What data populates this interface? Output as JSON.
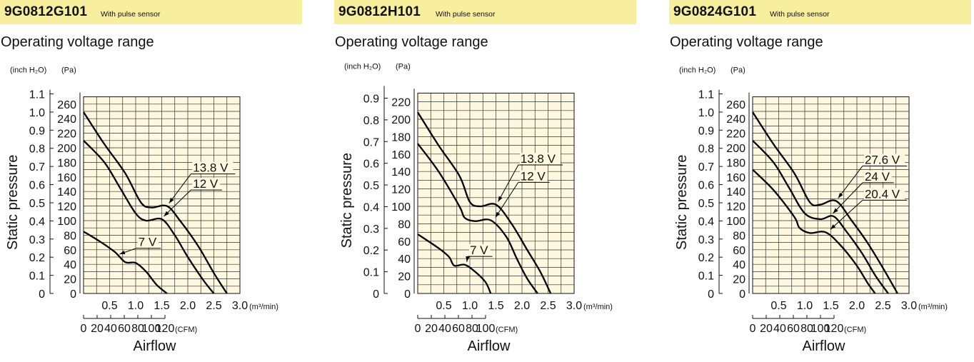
{
  "chart_data": [
    {
      "type": "line",
      "title": "9G0812G101",
      "subtitle": "With pulse sensor",
      "section_label": "Operating voltage range",
      "xlabel": "Airflow",
      "ylabel": "Static pressure",
      "x_unit_top": "(m³/min)",
      "x_unit_bottom": "(CFM)",
      "y_unit_left": "(inch H₂O)",
      "y_unit_right": "(Pa)",
      "x_ticks_m3": [
        "0.5",
        "1.0",
        "1.5",
        "2.0",
        "2.5",
        "3.0"
      ],
      "x_ticks_cfm": [
        "0",
        "20",
        "40",
        "60",
        "80",
        "100",
        "120"
      ],
      "y_ticks_pa": [
        "0",
        "20",
        "40",
        "60",
        "80",
        "100",
        "120",
        "140",
        "160",
        "180",
        "200",
        "220",
        "240",
        "260"
      ],
      "y_ticks_inch": [
        "0",
        "0.1",
        "0.2",
        "0.3",
        "0.4",
        "0.5",
        "0.6",
        "0.7",
        "0.8",
        "0.9",
        "1.0",
        "1.1"
      ],
      "xlim_m3": [
        0,
        3.0
      ],
      "ylim_pa": [
        0,
        270
      ],
      "grid": true,
      "series": [
        {
          "name": "13.8 V",
          "points": [
            [
              0,
              249
            ],
            [
              0.4,
              205
            ],
            [
              0.8,
              165
            ],
            [
              1.1,
              125
            ],
            [
              1.3,
              118
            ],
            [
              1.6,
              120
            ],
            [
              1.85,
              100
            ],
            [
              2.2,
              65
            ],
            [
              2.5,
              28
            ],
            [
              2.75,
              0
            ]
          ]
        },
        {
          "name": "12 V",
          "points": [
            [
              0,
              210
            ],
            [
              0.4,
              180
            ],
            [
              0.7,
              145
            ],
            [
              1.0,
              110
            ],
            [
              1.2,
              100
            ],
            [
              1.5,
              102
            ],
            [
              1.75,
              80
            ],
            [
              2.0,
              50
            ],
            [
              2.3,
              18
            ],
            [
              2.5,
              0
            ]
          ]
        },
        {
          "name": "7 V",
          "points": [
            [
              0,
              85
            ],
            [
              0.3,
              72
            ],
            [
              0.6,
              57
            ],
            [
              0.8,
              43
            ],
            [
              1.0,
              42
            ],
            [
              1.2,
              30
            ],
            [
              1.4,
              12
            ],
            [
              1.6,
              0
            ]
          ]
        }
      ],
      "labels": [
        {
          "text": "13.8 V",
          "at": [
            1.6,
            120
          ],
          "tx": 2.1,
          "ty": 167
        },
        {
          "text": "12 V",
          "at": [
            1.5,
            102
          ],
          "tx": 2.1,
          "ty": 145
        },
        {
          "text": "7 V",
          "at": [
            0.65,
            50
          ],
          "tx": 1.05,
          "ty": 65
        }
      ]
    },
    {
      "type": "line",
      "title": "9G0812H101",
      "subtitle": "With pulse sensor",
      "section_label": "Operating voltage range",
      "xlabel": "Airflow",
      "ylabel": "Static pressure",
      "x_unit_top": "(m³/min)",
      "x_unit_bottom": "(CFM)",
      "y_unit_left": "(inch H₂O)",
      "y_unit_right": "(Pa)",
      "x_ticks_m3": [
        "0.5",
        "1.0",
        "1.5",
        "2.0",
        "2.5",
        "3.0"
      ],
      "x_ticks_cfm": [
        "0",
        "20",
        "40",
        "60",
        "80",
        "100"
      ],
      "y_ticks_pa": [
        "0",
        "20",
        "40",
        "60",
        "80",
        "100",
        "120",
        "140",
        "160",
        "180",
        "200",
        "220"
      ],
      "y_ticks_inch": [
        "0",
        "0.1",
        "0.2",
        "0.3",
        "0.4",
        "0.5",
        "0.6",
        "0.7",
        "0.8",
        "0.9"
      ],
      "xlim_m3": [
        0,
        3.0
      ],
      "ylim_pa": [
        0,
        225
      ],
      "grid": true,
      "series": [
        {
          "name": "13.8 V",
          "points": [
            [
              0,
              208
            ],
            [
              0.4,
              170
            ],
            [
              0.8,
              135
            ],
            [
              1.0,
              105
            ],
            [
              1.2,
              100
            ],
            [
              1.5,
              102
            ],
            [
              1.8,
              80
            ],
            [
              2.1,
              50
            ],
            [
              2.35,
              25
            ],
            [
              2.55,
              0
            ]
          ]
        },
        {
          "name": "12 V",
          "points": [
            [
              0,
              172
            ],
            [
              0.4,
              140
            ],
            [
              0.8,
              100
            ],
            [
              0.9,
              87
            ],
            [
              1.1,
              83
            ],
            [
              1.4,
              84
            ],
            [
              1.7,
              65
            ],
            [
              1.9,
              40
            ],
            [
              2.1,
              17
            ],
            [
              2.3,
              0
            ]
          ]
        },
        {
          "name": "7 V",
          "points": [
            [
              0,
              68
            ],
            [
              0.4,
              52
            ],
            [
              0.6,
              42
            ],
            [
              0.7,
              32
            ],
            [
              0.9,
              33
            ],
            [
              1.1,
              25
            ],
            [
              1.3,
              13
            ],
            [
              1.4,
              0
            ]
          ]
        }
      ],
      "labels": [
        {
          "text": "13.8 V",
          "at": [
            1.5,
            102
          ],
          "tx": 1.97,
          "ty": 150
        },
        {
          "text": "12 V",
          "at": [
            1.45,
            84
          ],
          "tx": 1.97,
          "ty": 130
        },
        {
          "text": "7 V",
          "at": [
            0.9,
            33
          ],
          "tx": 1.0,
          "ty": 45
        }
      ]
    },
    {
      "type": "line",
      "title": "9G0824G101",
      "subtitle": "With pulse sensor",
      "section_label": "Operating voltage range",
      "xlabel": "Airflow",
      "ylabel": "Static pressure",
      "x_unit_top": "(m³/min)",
      "x_unit_bottom": "(CFM)",
      "y_unit_left": "(inch H₂O)",
      "y_unit_right": "(Pa)",
      "x_ticks_m3": [
        "0.5",
        "1.0",
        "1.5",
        "2.0",
        "2.5",
        "3.0"
      ],
      "x_ticks_cfm": [
        "0",
        "20",
        "40",
        "60",
        "80",
        "100",
        "120"
      ],
      "y_ticks_pa": [
        "0",
        "20",
        "40",
        "60",
        "80",
        "100",
        "120",
        "140",
        "160",
        "180",
        "200",
        "220",
        "240",
        "260"
      ],
      "y_ticks_inch": [
        "0",
        "0.1",
        "0.2",
        "0.3",
        "0.4",
        "0.5",
        "0.6",
        "0.7",
        "0.8",
        "0.9",
        "1.0",
        "1.1"
      ],
      "xlim_m3": [
        0,
        3.0
      ],
      "ylim_pa": [
        0,
        270
      ],
      "grid": true,
      "series": [
        {
          "name": "27.6 V",
          "points": [
            [
              0,
              249
            ],
            [
              0.4,
              205
            ],
            [
              0.8,
              165
            ],
            [
              1.1,
              125
            ],
            [
              1.3,
              122
            ],
            [
              1.6,
              127
            ],
            [
              1.9,
              100
            ],
            [
              2.2,
              70
            ],
            [
              2.5,
              35
            ],
            [
              2.78,
              0
            ]
          ]
        },
        {
          "name": "24 V",
          "points": [
            [
              0,
              210
            ],
            [
              0.4,
              180
            ],
            [
              0.7,
              145
            ],
            [
              1.0,
              110
            ],
            [
              1.3,
              102
            ],
            [
              1.55,
              106
            ],
            [
              1.8,
              85
            ],
            [
              2.1,
              55
            ],
            [
              2.35,
              25
            ],
            [
              2.6,
              0
            ]
          ]
        },
        {
          "name": "20.4 V",
          "points": [
            [
              0,
              170
            ],
            [
              0.4,
              142
            ],
            [
              0.8,
              105
            ],
            [
              0.9,
              90
            ],
            [
              1.1,
              83
            ],
            [
              1.4,
              84
            ],
            [
              1.7,
              65
            ],
            [
              2.0,
              38
            ],
            [
              2.2,
              15
            ],
            [
              2.35,
              0
            ]
          ]
        }
      ],
      "labels": [
        {
          "text": "27.6 V",
          "at": [
            1.6,
            127
          ],
          "tx": 2.15,
          "ty": 178
        },
        {
          "text": "24 V",
          "at": [
            1.5,
            106
          ],
          "tx": 2.15,
          "ty": 155
        },
        {
          "text": "20.4 V",
          "at": [
            1.45,
            84
          ],
          "tx": 2.15,
          "ty": 131
        }
      ]
    }
  ]
}
